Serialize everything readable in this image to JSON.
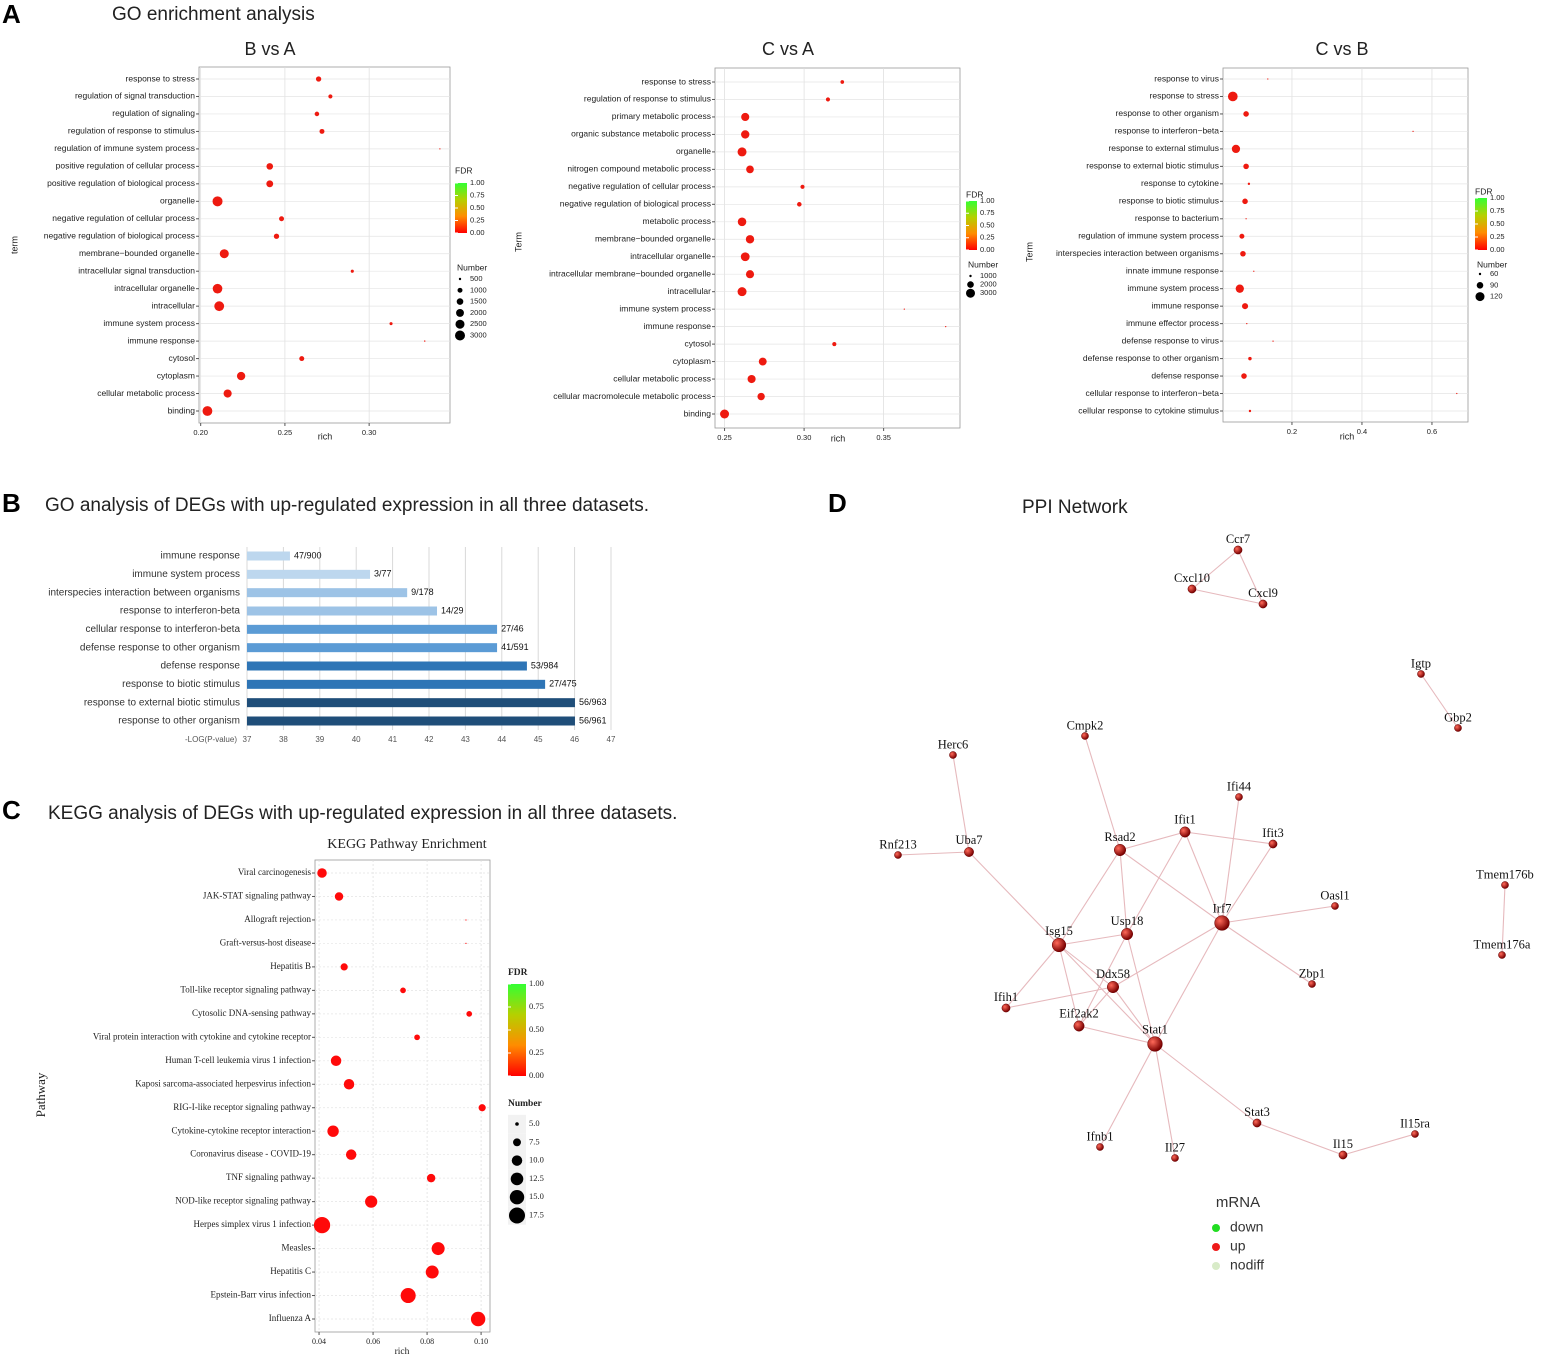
{
  "panels": [
    {
      "label": "A",
      "heading": "GO enrichment analysis"
    },
    {
      "label": "B",
      "heading": "GO analysis of  DEGs with up-regulated expression in all three datasets."
    },
    {
      "label": "C",
      "heading": "KEGG  analysis of  DEGs with up-regulated expression in all three datasets."
    },
    {
      "label": "D",
      "heading": "PPI Network"
    }
  ],
  "chart_data": [
    {
      "type": "dot",
      "title": "B vs A",
      "xlabel": "rich",
      "ylabel": "term",
      "color": "#ee1a10",
      "grid": true,
      "categories": [
        "response to stress",
        "regulation of signal transduction",
        "regulation of signaling",
        "regulation of response to stimulus",
        "regulation of immune system process",
        "positive regulation of cellular process",
        "positive regulation of biological process",
        "organelle",
        "negative regulation of cellular process",
        "negative regulation of biological process",
        "membrane−bounded organelle",
        "intracellular signal transduction",
        "intracellular organelle",
        "intracellular",
        "immune system process",
        "immune response",
        "cytosol",
        "cytoplasm",
        "cellular metabolic process",
        "binding"
      ],
      "values": [
        0.27,
        0.277,
        0.269,
        0.272,
        0.342,
        0.241,
        0.241,
        0.21,
        0.248,
        0.245,
        0.214,
        0.29,
        0.21,
        0.211,
        0.313,
        0.333,
        0.26,
        0.224,
        0.216,
        0.204
      ],
      "sizes": [
        1100,
        800,
        900,
        1000,
        300,
        1500,
        1600,
        3000,
        1000,
        1100,
        2500,
        600,
        2800,
        2900,
        600,
        400,
        1000,
        2200,
        2100,
        2900
      ],
      "xlim": [
        0.199,
        0.348
      ],
      "xticks": [
        {
          "value": 0.2,
          "label": "0.20"
        },
        0.25,
        {
          "value": 0.3,
          "label": "0.30"
        }
      ],
      "fdr_legend": {
        "title": "FDR",
        "colors": [
          "#ff0000",
          "#ff8c00",
          "#b5d000",
          "#33ff33"
        ],
        "ticks": [
          {
            "value": 0,
            "label": "0.00"
          },
          0.25,
          {
            "value": 0.5,
            "label": "0.50"
          },
          0.75,
          {
            "value": 1,
            "label": "1.00"
          }
        ]
      },
      "size_legend": {
        "title": "Number",
        "ticks": [
          500,
          1000,
          1500,
          2000,
          2500,
          3000
        ]
      }
    },
    {
      "type": "dot",
      "title": "C vs A",
      "xlabel": "rich",
      "ylabel": "Term",
      "color": "#ee1a10",
      "grid": true,
      "categories": [
        "response to stress",
        "regulation of response to stimulus",
        "primary metabolic process",
        "organic substance metabolic process",
        "organelle",
        "nitrogen compound metabolic process",
        "negative regulation of cellular process",
        "negative regulation of biological process",
        "metabolic process",
        "membrane−bounded organelle",
        "intracellular organelle",
        "intracellular membrane−bounded organelle",
        "intracellular",
        "immune system process",
        "immune response",
        "cytosol",
        "cytoplasm",
        "cellular metabolic process",
        "cellular macromolecule metabolic process",
        "binding"
      ],
      "values": [
        0.324,
        0.315,
        0.263,
        0.263,
        0.261,
        0.266,
        0.299,
        0.297,
        0.261,
        0.266,
        0.263,
        0.266,
        0.261,
        0.363,
        0.389,
        0.319,
        0.274,
        0.267,
        0.273,
        0.25
      ],
      "sizes": [
        1200,
        1300,
        2600,
        2700,
        3000,
        2400,
        1300,
        1400,
        2800,
        2700,
        2900,
        2600,
        3000,
        600,
        300,
        1300,
        2500,
        2600,
        2300,
        3000
      ],
      "xlim": [
        0.244,
        0.398
      ],
      "xticks": [
        0.25,
        {
          "value": 0.3,
          "label": "0.30"
        },
        0.35
      ],
      "fdr_legend": {
        "title": "FDR",
        "colors": [
          "#ff0000",
          "#ff8c00",
          "#b5d000",
          "#33ff33"
        ],
        "ticks": [
          {
            "value": 0,
            "label": "0.00"
          },
          0.25,
          {
            "value": 0.5,
            "label": "0.50"
          },
          0.75,
          {
            "value": 1,
            "label": "1.00"
          }
        ]
      },
      "size_legend": {
        "title": "Number",
        "ticks": [
          1000,
          2000,
          3000
        ]
      }
    },
    {
      "type": "dot",
      "title": "C vs B",
      "xlabel": "rich",
      "ylabel": "Term",
      "color": "#ee1a10",
      "grid": true,
      "categories": [
        "response to virus",
        "response to stress",
        "response to other organism",
        "response to interferon−beta",
        "response to external stimulus",
        "response to external biotic stimulus",
        "response to cytokine",
        "response to biotic stimulus",
        "response to bacterium",
        "regulation of immune system process",
        "interspecies interaction between organisms",
        "innate immune response",
        "immune system process",
        "immune response",
        "immune effector process",
        "defense response to virus",
        "defense response to other organism",
        "defense response",
        "cellular response to interferon−beta",
        "cellular response to cytokine stimulus"
      ],
      "values": [
        0.131,
        0.031,
        0.069,
        0.546,
        0.04,
        0.069,
        0.077,
        0.066,
        0.069,
        0.057,
        0.06,
        0.091,
        0.051,
        0.066,
        0.071,
        0.146,
        0.08,
        0.063,
        0.671,
        0.08
      ],
      "sizes": [
        40,
        130,
        80,
        15,
        110,
        80,
        60,
        80,
        50,
        75,
        80,
        55,
        110,
        85,
        45,
        35,
        65,
        80,
        12,
        60
      ],
      "xlim": [
        0.003,
        0.703
      ],
      "xticks": [
        0.2,
        0.4,
        0.6
      ],
      "fdr_legend": {
        "title": "FDR",
        "colors": [
          "#ff0000",
          "#ff8c00",
          "#b5d000",
          "#33ff33"
        ],
        "ticks": [
          {
            "value": 0,
            "label": "0.00"
          },
          0.25,
          {
            "value": 0.5,
            "label": "0.50"
          },
          0.75,
          {
            "value": 1,
            "label": "1.00"
          }
        ]
      },
      "size_legend": {
        "title": "Number",
        "ticks": [
          60,
          90,
          120
        ]
      }
    },
    {
      "type": "bar",
      "orientation": "horizontal",
      "xlabel": "-LOG(P-value)",
      "grid": true,
      "categories": [
        "immune response",
        "immune system process",
        "interspecies interaction between organisms",
        "response to interferon-beta",
        "cellular response to interferon-beta",
        "defense response to other organism",
        "defense response",
        "response to biotic stimulus",
        "response to external biotic stimulus",
        "response to other organism"
      ],
      "values": [
        38.18,
        40.38,
        41.4,
        42.22,
        43.87,
        43.87,
        44.69,
        45.19,
        46.01,
        46.01
      ],
      "annotations": [
        "47/900",
        "3/77",
        "9/178",
        "14/29",
        "27/46",
        "41/591",
        "53/984",
        "27/475",
        "56/963",
        "56/961"
      ],
      "colors": [
        "#bdd7ee",
        "#bdd7ee",
        "#9dc3e6",
        "#9dc3e6",
        "#5b9bd5",
        "#5b9bd5",
        "#2e75b6",
        "#2e75b6",
        "#1f4e79",
        "#1f4e79"
      ],
      "xlim": [
        37,
        47
      ],
      "xticks": [
        37,
        38,
        39,
        40,
        41,
        42,
        43,
        44,
        45,
        46,
        47
      ]
    },
    {
      "type": "dot",
      "title": "KEGG Pathway Enrichment",
      "xlabel": "rich",
      "ylabel": "Pathway",
      "color": "#ff0a0a",
      "grid": true,
      "categories": [
        "Viral carcinogenesis",
        "JAK-STAT signaling pathway",
        "Allograft rejection",
        "Graft-versus-host disease",
        "Hepatitis B",
        "Toll-like receptor signaling pathway",
        "Cytosolic DNA-sensing pathway",
        "Viral protein interaction with cytokine and cytokine receptor",
        "Human T-cell leukemia virus 1 infection",
        "Kaposi sarcoma-associated herpesvirus infection",
        "RIG-I-like receptor signaling pathway",
        "Cytokine-cytokine receptor interaction",
        "Coronavirus disease - COVID-19",
        "TNF signaling pathway",
        "NOD-like receptor signaling pathway",
        "Herpes simplex virus 1 infection",
        "Measles",
        "Hepatitis C",
        "Epstein-Barr virus infection",
        "Influenza A"
      ],
      "values": [
        0.0411,
        0.0474,
        0.0944,
        0.0944,
        0.0493,
        0.0711,
        0.0956,
        0.0763,
        0.0463,
        0.0511,
        0.1004,
        0.0452,
        0.0519,
        0.0815,
        0.0593,
        0.0411,
        0.0841,
        0.0819,
        0.073,
        0.0989
      ],
      "sizes": [
        9,
        8,
        4,
        4,
        7,
        6,
        6,
        6,
        10,
        10,
        7,
        11,
        10,
        8,
        12,
        18,
        13,
        13,
        16,
        15
      ],
      "xlim": [
        0.0385,
        0.1033
      ],
      "xticks": [
        0.04,
        0.06,
        0.08,
        {
          "value": 0.1,
          "label": "0.10"
        }
      ],
      "fdr_legend": {
        "title": "FDR",
        "colors": [
          "#ff0000",
          "#ff8c00",
          "#b5d000",
          "#33ff33"
        ],
        "ticks": [
          {
            "value": 0,
            "label": "0.00"
          },
          0.25,
          {
            "value": 0.5,
            "label": "0.50"
          },
          0.75,
          {
            "value": 1,
            "label": "1.00"
          }
        ]
      },
      "size_legend": {
        "title": "Number",
        "ticks": [
          {
            "value": 5,
            "label": "5.0"
          },
          7.5,
          {
            "value": 10,
            "label": "10.0"
          },
          12.5,
          {
            "value": 15,
            "label": "15.0"
          },
          17.5
        ]
      }
    }
  ],
  "network": {
    "nodes": [
      {
        "label": "Ccr7",
        "regulation": "up"
      },
      {
        "label": "Cxcl10",
        "regulation": "up"
      },
      {
        "label": "Cxcl9",
        "regulation": "up"
      },
      {
        "label": "Igtp",
        "regulation": "up"
      },
      {
        "label": "Gbp2",
        "regulation": "up"
      },
      {
        "label": "Tmem176b",
        "regulation": "up"
      },
      {
        "label": "Tmem176a",
        "regulation": "up"
      },
      {
        "label": "Herc6",
        "regulation": "up"
      },
      {
        "label": "Cmpk2",
        "regulation": "up"
      },
      {
        "label": "Ifi44",
        "regulation": "up"
      },
      {
        "label": "Ifit1",
        "regulation": "up"
      },
      {
        "label": "Ifit3",
        "regulation": "up"
      },
      {
        "label": "Rnf213",
        "regulation": "up"
      },
      {
        "label": "Uba7",
        "regulation": "up"
      },
      {
        "label": "Rsad2",
        "regulation": "up"
      },
      {
        "label": "Oasl1",
        "regulation": "up"
      },
      {
        "label": "Irf7",
        "regulation": "up"
      },
      {
        "label": "Usp18",
        "regulation": "up"
      },
      {
        "label": "Isg15",
        "regulation": "up"
      },
      {
        "label": "Ddx58",
        "regulation": "up"
      },
      {
        "label": "Zbp1",
        "regulation": "up"
      },
      {
        "label": "Ifih1",
        "regulation": "up"
      },
      {
        "label": "Eif2ak2",
        "regulation": "up"
      },
      {
        "label": "Stat1",
        "regulation": "up"
      },
      {
        "label": "Stat3",
        "regulation": "up"
      },
      {
        "label": "Il15ra",
        "regulation": "up"
      },
      {
        "label": "Ifnb1",
        "regulation": "up"
      },
      {
        "label": "Il27",
        "regulation": "up"
      },
      {
        "label": "Il15",
        "regulation": "up"
      }
    ],
    "edges": [
      [
        "Ccr7",
        "Cxcl10"
      ],
      [
        "Ccr7",
        "Cxcl9"
      ],
      [
        "Cxcl10",
        "Cxcl9"
      ],
      [
        "Igtp",
        "Gbp2"
      ],
      [
        "Tmem176b",
        "Tmem176a"
      ],
      [
        "Herc6",
        "Uba7"
      ],
      [
        "Rnf213",
        "Uba7"
      ],
      [
        "Uba7",
        "Isg15"
      ],
      [
        "Cmpk2",
        "Rsad2"
      ],
      [
        "Rsad2",
        "Ifit1"
      ],
      [
        "Rsad2",
        "Usp18"
      ],
      [
        "Rsad2",
        "Isg15"
      ],
      [
        "Rsad2",
        "Irf7"
      ],
      [
        "Ifit1",
        "Ifit3"
      ],
      [
        "Ifit1",
        "Usp18"
      ],
      [
        "Ifit1",
        "Irf7"
      ],
      [
        "Ifi44",
        "Irf7"
      ],
      [
        "Ifit3",
        "Irf7"
      ],
      [
        "Irf7",
        "Oasl1"
      ],
      [
        "Irf7",
        "Zbp1"
      ],
      [
        "Irf7",
        "Ddx58"
      ],
      [
        "Irf7",
        "Stat1"
      ],
      [
        "Isg15",
        "Usp18"
      ],
      [
        "Isg15",
        "Ddx58"
      ],
      [
        "Isg15",
        "Stat1"
      ],
      [
        "Isg15",
        "Ifih1"
      ],
      [
        "Isg15",
        "Eif2ak2"
      ],
      [
        "Usp18",
        "Stat1"
      ],
      [
        "Usp18",
        "Eif2ak2"
      ],
      [
        "Ddx58",
        "Ifih1"
      ],
      [
        "Ddx58",
        "Eif2ak2"
      ],
      [
        "Ddx58",
        "Stat1"
      ],
      [
        "Eif2ak2",
        "Stat1"
      ],
      [
        "Stat1",
        "Stat3"
      ],
      [
        "Stat1",
        "Ifnb1"
      ],
      [
        "Stat1",
        "Il27"
      ],
      [
        "Stat3",
        "Il15"
      ],
      [
        "Il15",
        "Il15ra"
      ]
    ],
    "legend": {
      "title": "mRNA",
      "entries": [
        {
          "label": "down",
          "color": "#22dd22"
        },
        {
          "label": "up",
          "color": "#ee1a1a"
        },
        {
          "label": "nodiff",
          "color": "#d8ebc8"
        }
      ]
    }
  }
}
